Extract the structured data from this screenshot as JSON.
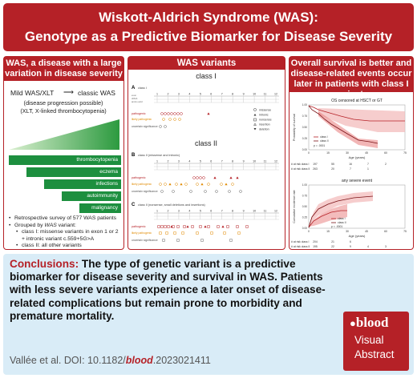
{
  "header": {
    "title1": "Wiskott-Aldrich Syndrome (WAS):",
    "title2": "Genotype as a Predictive Biomarker for Disease Severity"
  },
  "left": {
    "heading": "WAS, a disease with a large variation in disease severity",
    "mild": "Mild WAS/XLT",
    "classic": "classic WAS",
    "progression": "(disease progression possible)",
    "abbrev": "(XLT, X-linked thrombocytopenia)",
    "bars": [
      "thrombocytopenia",
      "eczema",
      "infections",
      "autoimmunity",
      "malignancy"
    ],
    "bullet1": "Retrospective survey of 577 WAS patients",
    "bullet2_prefix": "Grouped by ",
    "bullet2_em": "WAS",
    "bullet2_suffix": " variant:",
    "sub1": "class I: missense variants in exon 1 or 2 + intronic variant c.559+5G>A",
    "sub2": "class II: all other variants"
  },
  "middle": {
    "heading": "WAS variants",
    "class1": "class I",
    "class2": "class II",
    "panelA": "A",
    "panelB": "B",
    "panelC": "C",
    "subA": "class I",
    "subB": "class II (missense and intronic)",
    "subC": "class II (nonsense, small deletions and insertions)",
    "track_labels": [
      "pathogenic",
      "likely pathogenic",
      "uncertain significance"
    ],
    "legend": [
      "missense",
      "intronic",
      "nonsense",
      "insertion",
      "deletion"
    ],
    "row_labels": [
      "exon",
      "cDNA",
      "amino acid"
    ],
    "exons": [
      "1",
      "2",
      "3",
      "4",
      "5",
      "6",
      "7",
      "8",
      "9",
      "10",
      "11",
      "12"
    ]
  },
  "right": {
    "heading": "Overall survival is better and disease-related events occur later in patients with class I variants",
    "km_title": "OS censored at HSCT or GT",
    "km_ylabel": "Probability of survival",
    "km_xlabel": "Age (years)",
    "km_legend": [
      "class I",
      "class II"
    ],
    "km_p": "p = .0001",
    "km_xticks": [
      "0",
      "15",
      "30",
      "45",
      "60",
      "75"
    ],
    "km_yticks": [
      "0.00",
      "0.25",
      "0.50",
      "0.75",
      "1.00"
    ],
    "risk1_label": "# at risk class I",
    "risk1": [
      "197",
      "55",
      "16",
      "7",
      "2"
    ],
    "risk2_label": "# at risk class II",
    "risk2": [
      "263",
      "20",
      "7",
      "1",
      ""
    ],
    "cif_title": "any severe event",
    "cif_ylabel": "Cumulative incidence rate",
    "cif_xlabel": "Age (years)",
    "cif_legend": [
      "class I",
      "class II"
    ],
    "cif_p": "p < .0001",
    "cif_yticks": [
      "0.00",
      "0.25",
      "0.50",
      "0.75",
      "1.00"
    ],
    "risk3_label": "# at risk class I",
    "risk3": [
      "204",
      "21",
      "6",
      "",
      ""
    ],
    "risk4_label": "# at risk class II",
    "risk4": [
      "195",
      "22",
      "9",
      "4",
      "3"
    ]
  },
  "conclusion": {
    "label": "Conclusions:",
    "text": " The type of genetic variant is a predictive biomarker for disease severity and survival in WAS. Patients with less severe variants experience a later onset of disease-related complications but remain prone to morbidity and premature mortality.",
    "cite_prefix": "Vallée et al. DOI: 10.1182/",
    "cite_em": "blood",
    "cite_suffix": ".2023021411"
  },
  "logo": {
    "l1": "blood",
    "l2": "Visual",
    "l3": "Abstract"
  },
  "colors": {
    "red": "#b52127",
    "green": "#1d8f3f",
    "light_blue": "#d9ecf7"
  }
}
